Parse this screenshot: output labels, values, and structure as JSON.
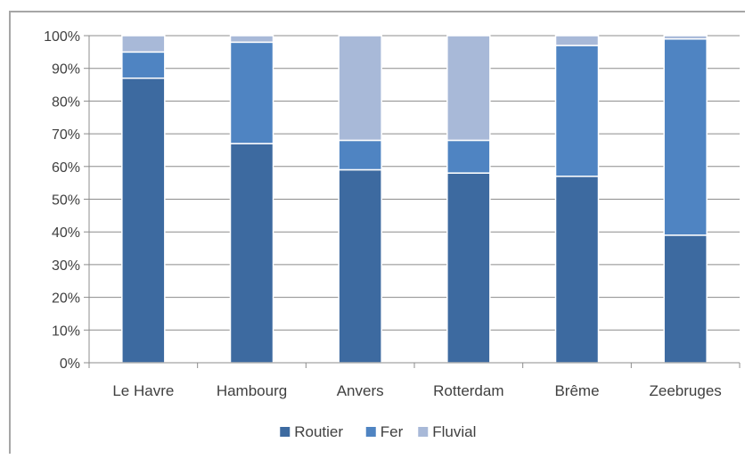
{
  "chart_data": {
    "type": "bar",
    "stacked": true,
    "percent": true,
    "categories": [
      "Le Havre",
      "Hambourg",
      "Anvers",
      "Rotterdam",
      "Brême",
      "Zeebruges"
    ],
    "series": [
      {
        "name": "Routier",
        "color": "#3d6aa0",
        "values": [
          87,
          67,
          59,
          58,
          57,
          39
        ]
      },
      {
        "name": "Fer",
        "color": "#4f84c2",
        "values": [
          8,
          31,
          9,
          10,
          40,
          60
        ]
      },
      {
        "name": "Fluvial",
        "color": "#a8b9d8",
        "values": [
          5,
          2,
          32,
          32,
          3,
          1
        ]
      }
    ],
    "ylim": [
      0,
      100
    ],
    "yticks": [
      "0%",
      "10%",
      "20%",
      "30%",
      "40%",
      "50%",
      "60%",
      "70%",
      "80%",
      "90%",
      "100%"
    ],
    "grid": true,
    "legend_position": "bottom"
  }
}
